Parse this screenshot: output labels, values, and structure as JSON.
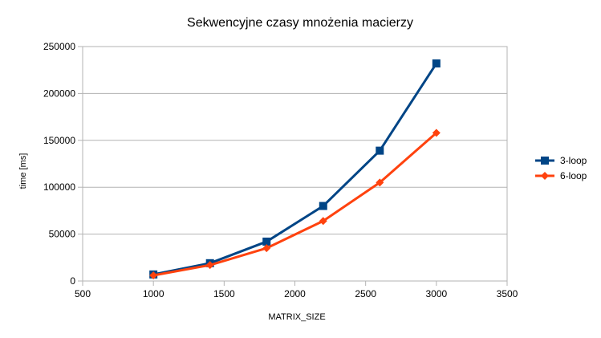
{
  "chart_data": {
    "type": "line",
    "title": "Sekwencyjne czasy mnożenia macierzy",
    "xlabel": "MATRIX_SIZE",
    "ylabel": "time [ms]",
    "xlim": [
      500,
      3500
    ],
    "ylim": [
      0,
      250000
    ],
    "x_ticks": [
      500,
      1000,
      1500,
      2000,
      2500,
      3000,
      3500
    ],
    "y_ticks": [
      0,
      50000,
      100000,
      150000,
      200000,
      250000
    ],
    "x_tick_labels": [
      "500",
      "1000",
      "1500",
      "2000",
      "2500",
      "3000",
      "3500"
    ],
    "y_tick_labels": [
      "0",
      "50000",
      "100000",
      "150000",
      "200000",
      "250000"
    ],
    "grid": "horizontal",
    "legend_position": "right",
    "series": [
      {
        "name": "3-loop",
        "color": "#004586",
        "marker": "square",
        "x": [
          1000,
          1400,
          1800,
          2200,
          2600,
          3000
        ],
        "values": [
          7000,
          19000,
          42000,
          80000,
          139000,
          232000
        ]
      },
      {
        "name": "6-loop",
        "color": "#ff420e",
        "marker": "diamond",
        "x": [
          1000,
          1400,
          1800,
          2200,
          2600,
          3000
        ],
        "values": [
          6000,
          17000,
          35000,
          64000,
          105000,
          158000
        ]
      }
    ]
  }
}
